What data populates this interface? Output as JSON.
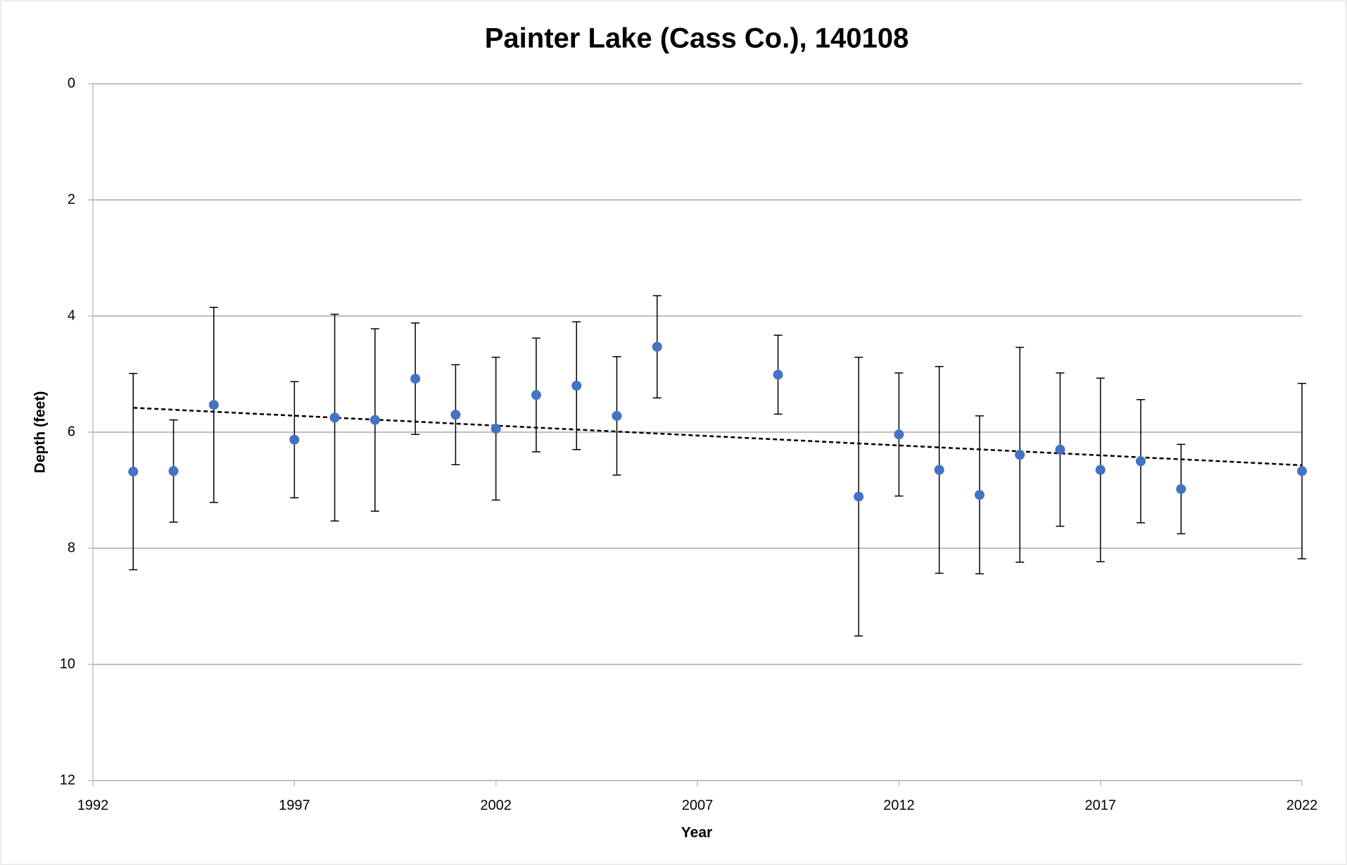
{
  "chart_data": {
    "type": "scatter",
    "title": "Painter Lake (Cass Co.), 140108",
    "x_label": "Year",
    "y_label": "Depth (feet)",
    "x": [
      1993,
      1994,
      1995,
      1997,
      1998,
      1999,
      2000,
      2001,
      2002,
      2003,
      2004,
      2005,
      2006,
      2009,
      2011,
      2012,
      2013,
      2014,
      2015,
      2016,
      2017,
      2018,
      2019,
      2022
    ],
    "values": [
      6.68,
      6.67,
      5.53,
      6.13,
      5.75,
      5.79,
      5.08,
      5.7,
      5.94,
      5.36,
      5.2,
      5.72,
      4.53,
      5.01,
      7.11,
      6.04,
      6.65,
      7.08,
      6.39,
      6.3,
      6.65,
      6.5,
      6.98,
      6.67
    ],
    "errors": [
      1.69,
      0.88,
      1.68,
      1.0,
      1.78,
      1.57,
      0.96,
      0.86,
      1.23,
      0.98,
      1.1,
      1.02,
      0.88,
      0.68,
      2.4,
      1.06,
      1.78,
      1.36,
      1.85,
      1.32,
      1.58,
      1.06,
      0.77,
      1.51
    ],
    "color": "#4472c4",
    "trendline": {
      "x": [
        1993,
        2022
      ],
      "y": [
        5.58,
        6.57
      ],
      "color": "#000000",
      "dashed": true
    },
    "xlim": [
      1992,
      2022
    ],
    "xticks": [
      1992,
      1997,
      2002,
      2007,
      2012,
      2017,
      2022
    ],
    "ylim": [
      0,
      12
    ],
    "yticks": [
      0,
      2,
      4,
      6,
      8,
      10,
      12
    ],
    "y_inverted": true,
    "grid": true
  }
}
